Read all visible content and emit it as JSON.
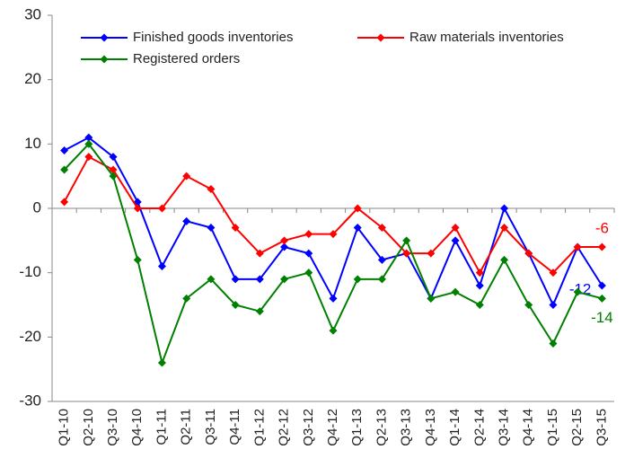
{
  "chart_data": {
    "type": "line",
    "categories": [
      "Q1-10",
      "Q2-10",
      "Q3-10",
      "Q4-10",
      "Q1-11",
      "Q2-11",
      "Q3-11",
      "Q4-11",
      "Q1-12",
      "Q2-12",
      "Q3-12",
      "Q4-12",
      "Q1-13",
      "Q2-13",
      "Q3-13",
      "Q4-13",
      "Q1-14",
      "Q2-14",
      "Q3-14",
      "Q4-14",
      "Q1-15",
      "Q2-15",
      "Q3-15"
    ],
    "series": [
      {
        "name": "Finished goods inventories",
        "color": "#0000ff",
        "values": [
          9,
          11,
          8,
          1,
          -9,
          -2,
          -3,
          -11,
          -11,
          -6,
          -7,
          -14,
          -3,
          -8,
          -7,
          -14,
          -5,
          -12,
          0,
          -7,
          -15,
          -6,
          -12
        ]
      },
      {
        "name": "Raw materials inventories",
        "color": "#ff0000",
        "values": [
          1,
          8,
          6,
          0,
          0,
          5,
          3,
          -3,
          -7,
          -5,
          -4,
          -4,
          0,
          -3,
          -7,
          -7,
          -3,
          -10,
          -3,
          -7,
          -10,
          -6,
          -6
        ]
      },
      {
        "name": "Registered orders",
        "color": "#008000",
        "values": [
          6,
          10,
          5,
          -8,
          -24,
          -14,
          -11,
          -15,
          -16,
          -11,
          -10,
          -19,
          -11,
          -11,
          -5,
          -14,
          -13,
          -15,
          -8,
          -15,
          -21,
          -13,
          -14
        ]
      }
    ],
    "ylim": [
      -30,
      30
    ],
    "yticks": [
      -30,
      -20,
      -10,
      0,
      10,
      20,
      30
    ],
    "grid": false,
    "end_labels": true,
    "legend": "top"
  }
}
